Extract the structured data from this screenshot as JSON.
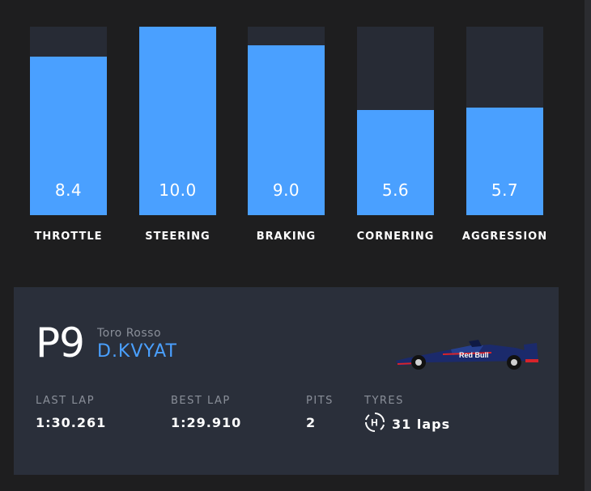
{
  "bars": [
    {
      "label": "THROTTLE",
      "value": "8.4",
      "fill": 0.84
    },
    {
      "label": "STEERING",
      "value": "10.0",
      "fill": 1.0
    },
    {
      "label": "BRAKING",
      "value": "9.0",
      "fill": 0.9
    },
    {
      "label": "CORNERING",
      "value": "5.6",
      "fill": 0.56
    },
    {
      "label": "AGGRESSION",
      "value": "5.7",
      "fill": 0.57
    }
  ],
  "driver_card": {
    "position": "P9",
    "team": "Toro Rosso",
    "driver": "D.KVYAT",
    "car_icon": "race-car-icon",
    "car_logo_text": "Red Bull",
    "stats": {
      "last_lap": {
        "label": "LAST LAP",
        "value": "1:30.261"
      },
      "best_lap": {
        "label": "BEST LAP",
        "value": "1:29.910"
      },
      "pits": {
        "label": "PITS",
        "value": "2"
      },
      "tyres": {
        "label": "TYRES",
        "value": "31 laps",
        "compound": "H",
        "icon": "hard-tyre-icon"
      }
    }
  },
  "colors": {
    "accent": "#4aa0ff",
    "bar_track": "#272b35",
    "card_bg": "#2a2f3a",
    "page_bg": "#1e1e1f",
    "muted_text": "#8a8f99"
  }
}
